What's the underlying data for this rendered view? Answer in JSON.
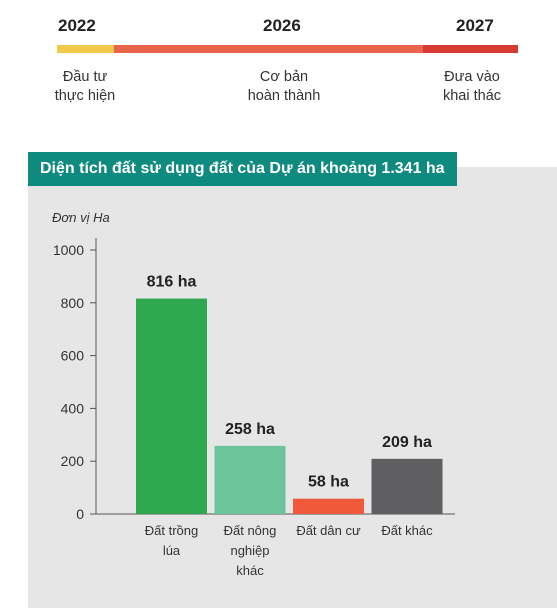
{
  "timeline": {
    "milestones": [
      {
        "year": "2022",
        "label_lines": [
          "Đầu tư",
          "thực hiện"
        ]
      },
      {
        "year": "2026",
        "label_lines": [
          "Cơ bản",
          "hoàn thành"
        ]
      },
      {
        "year": "2027",
        "label_lines": [
          "Đưa vào",
          "khai thác"
        ]
      }
    ],
    "colors": {
      "start": "#f2c94c",
      "middle": "#e8644a",
      "end": "#d63a32"
    }
  },
  "chart_data": {
    "type": "bar",
    "title": "Diện tích đất sử dụng đất của Dự án khoảng 1.341 ha",
    "ylabel": "Đơn vị Ha",
    "xlabel": "",
    "ylim": [
      0,
      1000
    ],
    "yticks": [
      0,
      200,
      400,
      600,
      800,
      1000
    ],
    "grid": false,
    "categories": [
      [
        "Đất trồng",
        "lúa"
      ],
      [
        "Đất nông",
        "nghiệp",
        "khác"
      ],
      [
        "Đất dân cư"
      ],
      [
        "Đất khác"
      ]
    ],
    "values": [
      816,
      258,
      58,
      209
    ],
    "data_labels": [
      "816 ha",
      "258 ha",
      "58 ha",
      "209 ha"
    ],
    "colors": [
      "#2fa84f",
      "#6cc59a",
      "#f05a3a",
      "#5f5f62"
    ]
  }
}
